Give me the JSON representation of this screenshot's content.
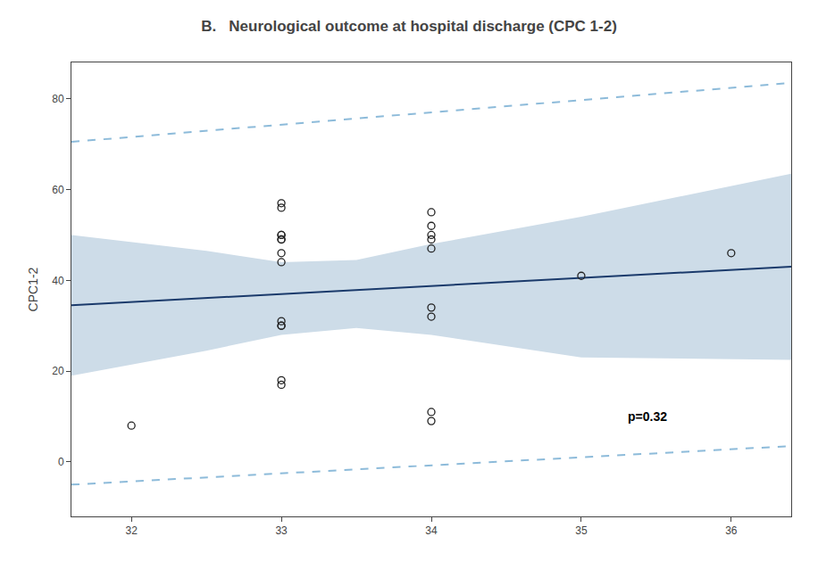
{
  "chart_data": {
    "type": "scatter",
    "title": "B.   Neurological outcome at hospital discharge (CPC 1-2)",
    "ylabel": "CPC1-2",
    "xlim": [
      31.6,
      36.4
    ],
    "ylim": [
      -12,
      88
    ],
    "xticks": [
      32,
      33,
      34,
      35,
      36
    ],
    "yticks": [
      0,
      20,
      40,
      60,
      80
    ],
    "grid": false,
    "series": [
      {
        "type": "line",
        "line_style": "dashed",
        "color": "#7ab0d4",
        "x": [
          31.6,
          36.4
        ],
        "values": [
          70.5,
          83.5
        ]
      },
      {
        "type": "line",
        "line_style": "dashed",
        "color": "#7ab0d4",
        "x": [
          31.6,
          36.4
        ],
        "values": [
          -5.0,
          3.5
        ]
      },
      {
        "type": "area",
        "color": "#cddce8",
        "x": [
          31.6,
          32.5,
          33.0,
          33.5,
          34.0,
          35.0,
          36.4
        ],
        "upper": [
          50.0,
          46.5,
          44.0,
          44.5,
          48.0,
          54.0,
          63.5
        ],
        "lower": [
          19.0,
          24.5,
          28.0,
          29.5,
          28.0,
          23.0,
          22.5
        ]
      },
      {
        "type": "line",
        "line_style": "solid",
        "color": "#1a3a6b",
        "x": [
          31.6,
          36.4
        ],
        "values": [
          34.5,
          43.0
        ]
      },
      {
        "type": "scatter",
        "marker": "open circle",
        "color": "#222222",
        "x": [
          32,
          33,
          33,
          33,
          33,
          33,
          33,
          33,
          33,
          33,
          33,
          33,
          33,
          33,
          34,
          34,
          34,
          34,
          34,
          34,
          34,
          34,
          34,
          35,
          36
        ],
        "values": [
          8,
          57,
          56,
          50,
          50,
          49,
          49,
          46,
          44,
          31,
          30,
          30,
          18,
          17,
          55,
          52,
          50,
          49,
          47,
          34,
          32,
          11,
          9,
          41,
          46
        ]
      }
    ],
    "annotations": [
      {
        "text": "p=0.32",
        "x": 35.3,
        "y": 10
      }
    ]
  }
}
